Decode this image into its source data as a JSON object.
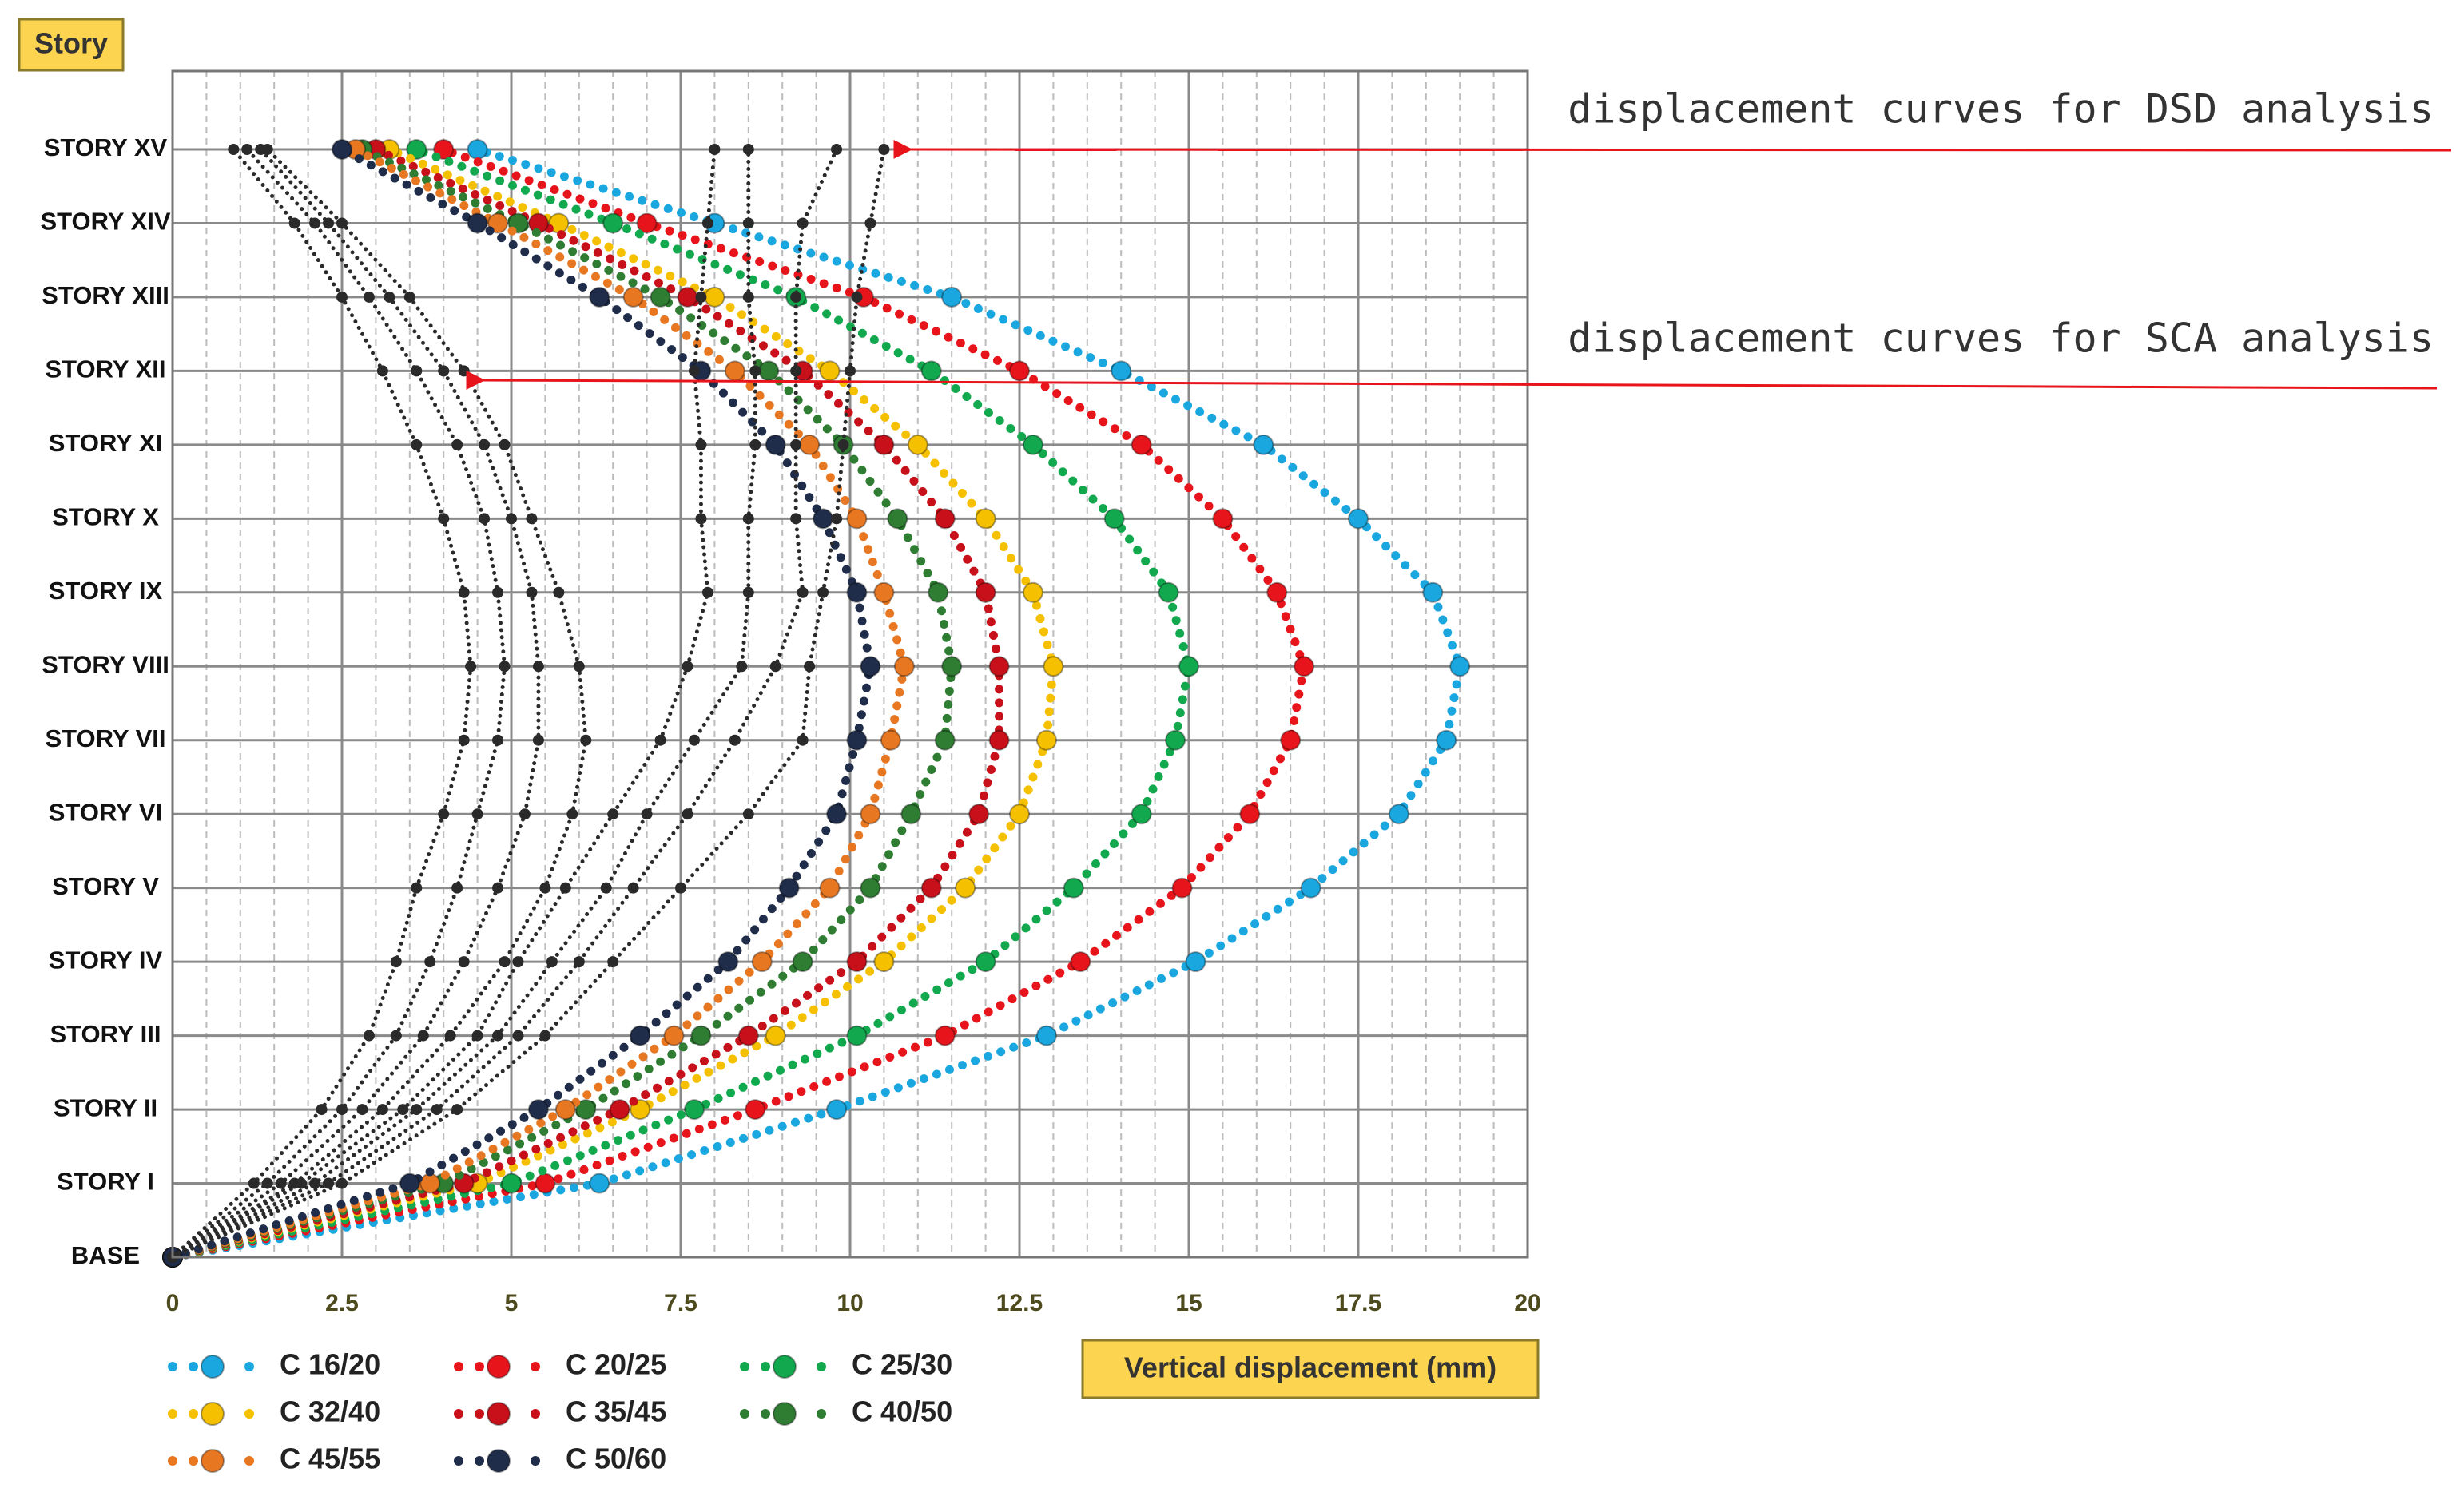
{
  "chart_data": {
    "type": "line",
    "y_label": "Story",
    "x_label": "Vertical displacement (mm)",
    "annotations": [
      "displacement curves for DSD analysis",
      "displacement curves for SCA analysis"
    ],
    "categories": [
      "BASE",
      "STORY I",
      "STORY II",
      "STORY III",
      "STORY IV",
      "STORY V",
      "STORY VI",
      "STORY VII",
      "STORY VIII",
      "STORY IX",
      "STORY X",
      "STORY XI",
      "STORY XII",
      "STORY XIII",
      "STORY XIV",
      "STORY XV"
    ],
    "xlim": [
      0,
      20
    ],
    "xticks": [
      0,
      2.5,
      5,
      7.5,
      10,
      12.5,
      15,
      17.5,
      20
    ],
    "grid": true,
    "series": [
      {
        "name": "C 16/20",
        "color": "#1aa7e0",
        "values": [
          0,
          6.3,
          9.8,
          12.9,
          15.1,
          16.8,
          18.1,
          18.8,
          19.0,
          18.6,
          17.5,
          16.1,
          14.0,
          11.5,
          8.0,
          4.5
        ]
      },
      {
        "name": "C 20/25",
        "color": "#e8141b",
        "values": [
          0,
          5.5,
          8.6,
          11.4,
          13.4,
          14.9,
          15.9,
          16.5,
          16.7,
          16.3,
          15.5,
          14.3,
          12.5,
          10.2,
          7.0,
          4.0
        ]
      },
      {
        "name": "C 25/30",
        "color": "#12a84e",
        "values": [
          0,
          5.0,
          7.7,
          10.1,
          12.0,
          13.3,
          14.3,
          14.8,
          15.0,
          14.7,
          13.9,
          12.7,
          11.2,
          9.2,
          6.5,
          3.6
        ]
      },
      {
        "name": "C 32/40",
        "color": "#f5c000",
        "values": [
          0,
          4.5,
          6.9,
          8.9,
          10.5,
          11.7,
          12.5,
          12.9,
          13.0,
          12.7,
          12.0,
          11.0,
          9.7,
          8.0,
          5.7,
          3.2
        ]
      },
      {
        "name": "C 35/45",
        "color": "#c8101a",
        "values": [
          0,
          4.3,
          6.6,
          8.5,
          10.1,
          11.2,
          11.9,
          12.2,
          12.2,
          12.0,
          11.4,
          10.5,
          9.3,
          7.6,
          5.4,
          3.0
        ]
      },
      {
        "name": "C 40/50",
        "color": "#2e7d32",
        "values": [
          0,
          4.0,
          6.1,
          7.8,
          9.3,
          10.3,
          10.9,
          11.4,
          11.5,
          11.3,
          10.7,
          9.9,
          8.8,
          7.2,
          5.1,
          2.8
        ]
      },
      {
        "name": "C 45/55",
        "color": "#e87722",
        "values": [
          0,
          3.8,
          5.8,
          7.4,
          8.7,
          9.7,
          10.3,
          10.6,
          10.8,
          10.5,
          10.1,
          9.4,
          8.3,
          6.8,
          4.8,
          2.7
        ]
      },
      {
        "name": "C 50/60",
        "color": "#1f2d4a",
        "values": [
          0,
          3.5,
          5.4,
          6.9,
          8.2,
          9.1,
          9.8,
          10.1,
          10.3,
          10.1,
          9.6,
          8.9,
          7.8,
          6.3,
          4.5,
          2.5
        ]
      },
      {
        "color": "#2a2a2a",
        "values": [
          0,
          1.2,
          2.2,
          2.9,
          3.3,
          3.6,
          4.0,
          4.3,
          4.4,
          4.3,
          4.0,
          3.6,
          3.1,
          2.5,
          1.8,
          0.9
        ]
      },
      {
        "color": "#2a2a2a",
        "values": [
          0,
          1.4,
          2.5,
          3.3,
          3.8,
          4.2,
          4.5,
          4.8,
          4.9,
          4.8,
          4.6,
          4.2,
          3.6,
          2.9,
          2.1,
          1.1
        ]
      },
      {
        "color": "#2a2a2a",
        "values": [
          0,
          1.6,
          2.8,
          3.7,
          4.3,
          4.8,
          5.2,
          5.4,
          5.4,
          5.3,
          5.0,
          4.6,
          4.0,
          3.2,
          2.3,
          1.3
        ]
      },
      {
        "color": "#2a2a2a",
        "values": [
          0,
          1.8,
          3.1,
          4.1,
          4.9,
          5.5,
          5.9,
          6.1,
          6.0,
          5.7,
          5.3,
          4.9,
          4.3,
          3.5,
          2.5,
          1.4
        ]
      },
      {
        "color": "#2a2a2a",
        "values": [
          0,
          1.9,
          3.4,
          4.5,
          5.1,
          5.8,
          6.5,
          7.2,
          7.6,
          7.9,
          7.8,
          7.8,
          7.7,
          7.8,
          7.9,
          8.0
        ]
      },
      {
        "color": "#2a2a2a",
        "values": [
          0,
          2.1,
          3.6,
          4.8,
          5.6,
          6.4,
          7.0,
          7.7,
          8.4,
          8.5,
          8.5,
          8.6,
          8.6,
          8.5,
          8.5,
          8.5
        ]
      },
      {
        "color": "#2a2a2a",
        "values": [
          0,
          2.3,
          3.9,
          5.1,
          6.0,
          6.8,
          7.6,
          8.3,
          8.9,
          9.3,
          9.2,
          9.2,
          9.2,
          9.2,
          9.3,
          9.8
        ]
      },
      {
        "color": "#2a2a2a",
        "values": [
          0,
          2.5,
          4.2,
          5.5,
          6.5,
          7.5,
          8.5,
          9.3,
          9.4,
          9.6,
          9.8,
          9.9,
          10.0,
          10.1,
          10.3,
          10.5
        ]
      }
    ]
  }
}
